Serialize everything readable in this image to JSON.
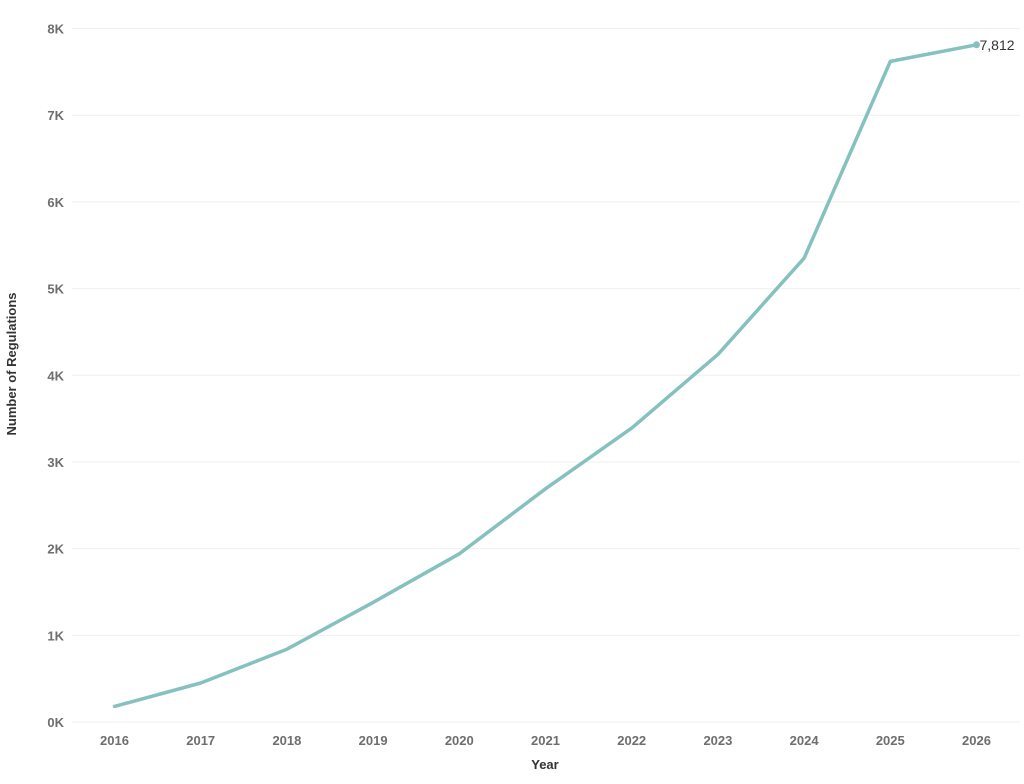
{
  "chart_data": {
    "type": "line",
    "title": "",
    "xlabel": "Year",
    "ylabel": "Number of Regulations",
    "x": [
      2016,
      2017,
      2018,
      2019,
      2020,
      2021,
      2022,
      2023,
      2024,
      2025,
      2026
    ],
    "x_tick_labels": [
      "2016",
      "2017",
      "2018",
      "2019",
      "2020",
      "2021",
      "2022",
      "2023",
      "2024",
      "2025",
      "2026"
    ],
    "series": [
      {
        "values": [
          180,
          450,
          840,
          1380,
          1940,
          2690,
          3390,
          4240,
          5350,
          7620,
          7812
        ],
        "color": "#85c1bf"
      }
    ],
    "ylim": [
      0,
      8000
    ],
    "y_ticks": [
      0,
      1000,
      2000,
      3000,
      4000,
      5000,
      6000,
      7000,
      8000
    ],
    "y_tick_labels": [
      "0K",
      "1K",
      "2K",
      "3K",
      "4K",
      "5K",
      "6K",
      "7K",
      "8K"
    ],
    "grid": true,
    "annotations": [
      {
        "x": 2026,
        "y": 7812,
        "text": "7,812"
      }
    ]
  }
}
